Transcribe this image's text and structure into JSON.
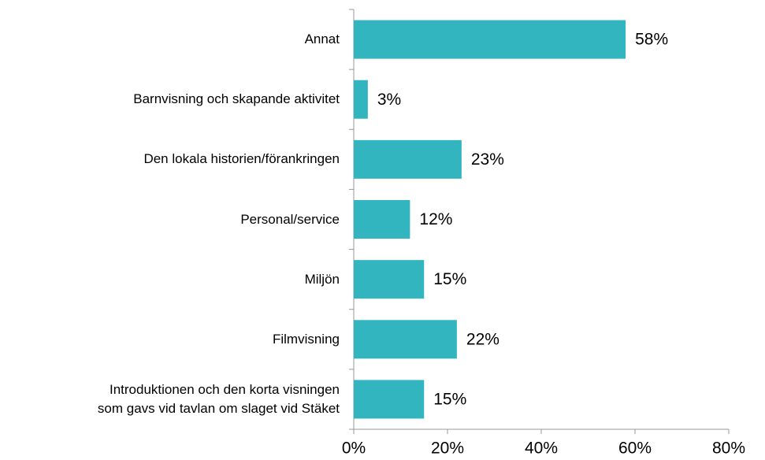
{
  "chart_data": {
    "type": "barh",
    "categories": [
      "Annat",
      "Barnvisning och skapande aktivitet",
      "Den lokala historien/förankringen",
      "Personal/service",
      "Miljön",
      "Filmvisning",
      "Introduktionen och den korta visningen\nsom gavs vid tavlan om slaget vid Stäket"
    ],
    "values": [
      58,
      3,
      23,
      12,
      15,
      22,
      15
    ],
    "value_labels": [
      "58%",
      "3%",
      "23%",
      "12%",
      "15%",
      "22%",
      "15%"
    ],
    "color": "#32b5bf",
    "xlim": [
      0,
      80
    ],
    "xticks": [
      {
        "value": 0,
        "label": "0%"
      },
      {
        "value": 20,
        "label": "20%"
      },
      {
        "value": 40,
        "label": "40%"
      },
      {
        "value": 60,
        "label": "60%"
      },
      {
        "value": 80,
        "label": "80%"
      }
    ],
    "grid": false
  }
}
